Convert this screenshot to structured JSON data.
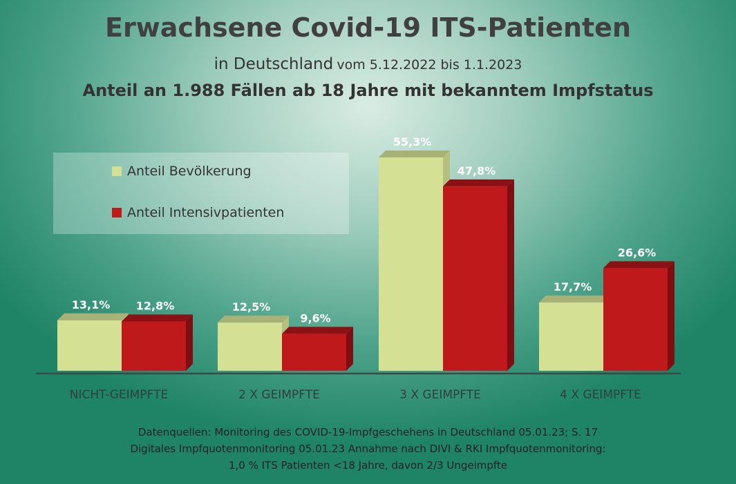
{
  "title": "Erwachsene Covid-19 ITS-Patienten",
  "subtitle_part1": "in Deutschland",
  "subtitle_part2": "vom 5.12.2022 bis 1.1.2023",
  "subtitle2": "Anteil an 1.988 Fällen ab 18 Jahre mit bekanntem Impfstatus",
  "footnote": [
    "Datenquellen: Monitoring des COVID-19-Impfgeschehens in Deutschland 05.01.23; S. 17",
    "Digitales Impfquotenmonitoring 05.01.23  Annahme nach DIVI & RKI Impfquotenmonitoring:",
    "1,0 % ITS Patienten <18 Jahre, davon 2/3 Ungeimpfte"
  ],
  "chart_data": {
    "type": "bar",
    "categories": [
      "NICHT-GEIMPFTE",
      "2 X GEIMPFTE",
      "3 X GEIMPFTE",
      "4 X GEIMPFTE"
    ],
    "series": [
      {
        "name": "Anteil Bevölkerung",
        "values": [
          13.1,
          12.5,
          55.3,
          17.7
        ],
        "labels": [
          "13,1%",
          "12,5%",
          "55,3%",
          "17,7%"
        ],
        "color": "#d4e194"
      },
      {
        "name": "Anteil Intensivpatienten",
        "values": [
          12.8,
          9.6,
          47.8,
          26.6
        ],
        "labels": [
          "12,8%",
          "9,6%",
          "47,8%",
          "26,6%"
        ],
        "color": "#c0191c"
      }
    ],
    "ylim": [
      0,
      60
    ],
    "legend_position": "top-left",
    "grid": false
  }
}
